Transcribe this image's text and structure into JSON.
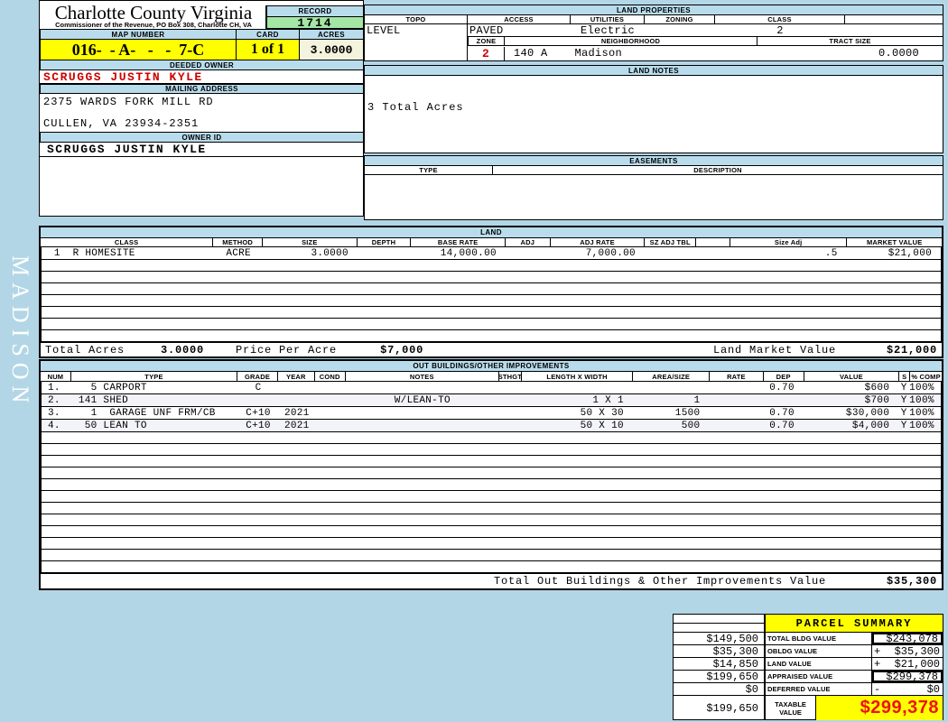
{
  "sidebar": {
    "district": "MADISON"
  },
  "header": {
    "county": "Charlotte County Virginia",
    "commissioner_line": "Commissioner of the Revenue, PO Box 308, Charlotte CH, VA",
    "record_label": "RECORD",
    "record_value": "1714",
    "map_number_label": "MAP NUMBER",
    "map_number": "016-  - A-   -   -  7-C",
    "card_label": "CARD",
    "card_value": "1 of 1",
    "acres_label": "ACRES",
    "acres_value": "3.0000"
  },
  "owner": {
    "deeded_owner_label": "DEEDED OWNER",
    "deeded_owner": "SCRUGGS JUSTIN KYLE",
    "mailing_address_label": "MAILING ADDRESS",
    "address_line1": "2375 WARDS FORK MILL RD",
    "address_line2": "CULLEN, VA 23934-2351",
    "owner_id_label": "OWNER ID",
    "owner_id": "SCRUGGS JUSTIN KYLE"
  },
  "land_properties": {
    "title": "LAND PROPERTIES",
    "topo_label": "TOPO",
    "topo": "LEVEL",
    "access_label": "ACCESS",
    "access": "PAVED",
    "utilities_label": "UTILITIES",
    "utilities": "Electric",
    "zoning_label": "ZONING",
    "zoning": "",
    "class_label": "CLASS",
    "class": "2",
    "zone_label": "ZONE",
    "zone": "2",
    "neighborhood_label": "NEIGHBORHOOD",
    "neighborhood_code": "140 A",
    "neighborhood_name": "Madison",
    "tract_size_label": "TRACT SIZE",
    "tract_size": "0.0000"
  },
  "land_notes": {
    "title": "LAND NOTES",
    "note": "3 Total Acres"
  },
  "easements": {
    "title": "EASEMENTS",
    "type_label": "TYPE",
    "description_label": "DESCRIPTION"
  },
  "land_table": {
    "title": "LAND",
    "headers": [
      "CLASS",
      "METHOD",
      "SIZE",
      "DEPTH",
      "BASE RATE",
      "ADJ",
      "ADJ RATE",
      "SZ ADJ TBL",
      "",
      "Size Adj",
      "MARKET VALUE"
    ],
    "row": [
      " 1  R HOMESITE",
      "ACRE",
      "3.0000",
      "",
      "14,000.00",
      "",
      "7,000.00",
      "",
      "",
      ".5",
      "$21,000"
    ],
    "empty_rows": 7,
    "totals": {
      "total_acres_label": "Total Acres",
      "total_acres": "3.0000",
      "price_per_acre_label": "Price Per Acre",
      "price_per_acre": "$7,000",
      "land_market_value_label": "Land Market Value",
      "land_market_value": "$21,000"
    }
  },
  "out_buildings": {
    "title": "OUT BUILDINGS/OTHER IMPROVEMENTS",
    "headers": [
      "NUM",
      "TYPE",
      "GRADE",
      "YEAR",
      "COND",
      "NOTES",
      "STHGT",
      "LENGTH X WIDTH",
      "AREA/SIZE",
      "RATE",
      "DEP",
      "VALUE",
      "S",
      "% COMP"
    ],
    "rows": [
      [
        "1.",
        "  5 CARPORT",
        "C",
        "",
        "",
        "",
        "",
        "",
        "",
        "",
        "0.70",
        "$600",
        "Y",
        "100%"
      ],
      [
        "2.",
        "141 SHED",
        "",
        "",
        "",
        "W/LEAN-TO",
        "",
        "1 X 1",
        "1",
        "",
        "",
        "$700",
        "Y",
        "100%"
      ],
      [
        "3.",
        "  1  GARAGE UNF FRM/CB",
        "C+10",
        "2021",
        "",
        "",
        "",
        "50 X 30",
        "1500",
        "",
        "0.70",
        "$30,000",
        "Y",
        "100%"
      ],
      [
        "4.",
        " 50 LEAN TO",
        "C+10",
        "2021",
        "",
        "",
        "",
        "50 X 10",
        "500",
        "",
        "0.70",
        "$4,000",
        "Y",
        "100%"
      ]
    ],
    "empty_rows": 12,
    "total_label": "Total Out Buildings & Other Improvements Value",
    "total_value": "$35,300"
  },
  "parcel_summary": {
    "title": "PARCEL SUMMARY",
    "rows": [
      {
        "left": "$149,500",
        "label": "TOTAL BLDG VALUE",
        "sign": "",
        "value": "$243,078"
      },
      {
        "left": "$35,300",
        "label": "OBLDG VALUE",
        "sign": "+",
        "value": "$35,300"
      },
      {
        "left": "$14,850",
        "label": "LAND VALUE",
        "sign": "+",
        "value": "$21,000"
      },
      {
        "left": "$199,650",
        "label": "APPRAISED VALUE",
        "sign": "",
        "value": "$299,378"
      },
      {
        "left": "$0",
        "label": "DEFERRED VALUE",
        "sign": "-",
        "value": "$0"
      }
    ],
    "taxable": {
      "left": "$199,650",
      "label": "TAXABLE VALUE",
      "value": "$299,378"
    }
  },
  "colors": {
    "page_blue": "#b3d6e6",
    "header_blue": "#b9dcec",
    "record_green": "#a4e6a4",
    "highlight_yellow": "#ffff00",
    "cream": "#f3f3de",
    "stripe": "#f3f3fa",
    "owner_red": "#cc0000",
    "taxable_red": "#ee1111"
  }
}
